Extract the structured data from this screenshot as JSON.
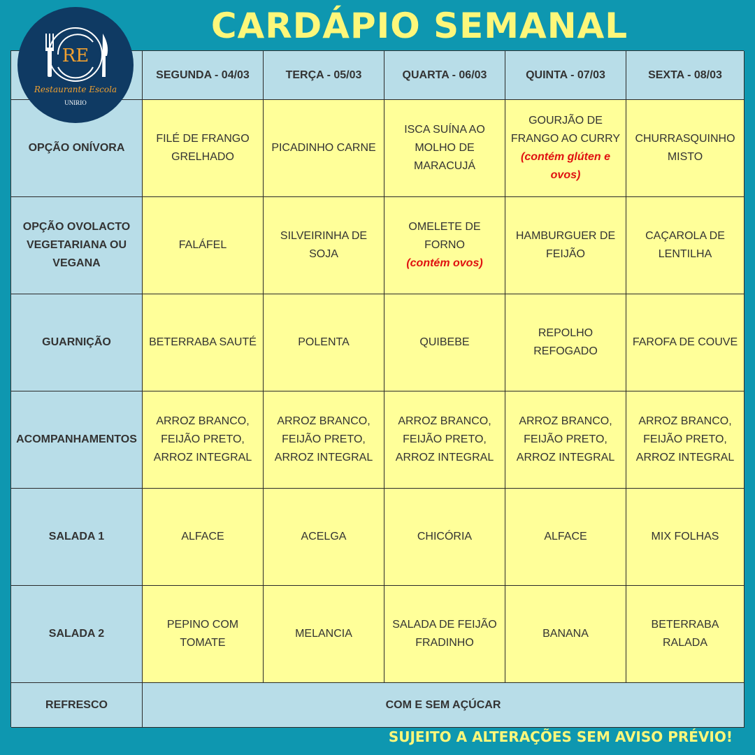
{
  "title": "CARDÁPIO SEMANAL",
  "logo": {
    "initials": "RE",
    "name": "Restaurante Escola",
    "org": "UNIRIO"
  },
  "days": [
    "SEGUNDA - 04/03",
    "TERÇA - 05/03",
    "QUARTA - 06/03",
    "QUINTA - 07/03",
    "SEXTA - 08/03"
  ],
  "rows": [
    {
      "label": "OPÇÃO ONÍVORA",
      "cells": [
        {
          "text": "FILÉ DE FRANGO GRELHADO"
        },
        {
          "text": "PICADINHO CARNE"
        },
        {
          "text": "ISCA SUÍNA AO MOLHO DE MARACUJÁ"
        },
        {
          "text": "GOURJÃO DE FRANGO AO CURRY",
          "note": "(contém glúten e ovos)"
        },
        {
          "text": "CHURRASQUINHO MISTO"
        }
      ]
    },
    {
      "label": "OPÇÃO OVOLACTO VEGETARIANA OU VEGANA",
      "cells": [
        {
          "text": "FALÁFEL"
        },
        {
          "text": "SILVEIRINHA DE SOJA"
        },
        {
          "text": "OMELETE DE FORNO",
          "note": "(contém ovos)"
        },
        {
          "text": "HAMBURGUER DE FEIJÃO"
        },
        {
          "text": "CAÇAROLA DE LENTILHA"
        }
      ]
    },
    {
      "label": "GUARNIÇÃO",
      "cells": [
        {
          "text": "BETERRABA SAUTÉ"
        },
        {
          "text": "POLENTA"
        },
        {
          "text": "QUIBEBE"
        },
        {
          "text": "REPOLHO REFOGADO"
        },
        {
          "text": "FAROFA DE COUVE"
        }
      ]
    },
    {
      "label": "ACOMPANHAMENTOS",
      "cells": [
        {
          "text": "ARROZ BRANCO, FEIJÃO PRETO, ARROZ INTEGRAL"
        },
        {
          "text": "ARROZ BRANCO, FEIJÃO PRETO, ARROZ INTEGRAL"
        },
        {
          "text": "ARROZ BRANCO, FEIJÃO PRETO, ARROZ INTEGRAL"
        },
        {
          "text": "ARROZ BRANCO, FEIJÃO PRETO, ARROZ INTEGRAL"
        },
        {
          "text": "ARROZ BRANCO, FEIJÃO PRETO, ARROZ INTEGRAL"
        }
      ]
    },
    {
      "label": "SALADA 1",
      "cells": [
        {
          "text": "ALFACE"
        },
        {
          "text": "ACELGA"
        },
        {
          "text": "CHICÓRIA"
        },
        {
          "text": "ALFACE"
        },
        {
          "text": "MIX FOLHAS"
        }
      ]
    },
    {
      "label": "SALADA 2",
      "cells": [
        {
          "text": "PEPINO COM TOMATE"
        },
        {
          "text": "MELANCIA"
        },
        {
          "text": "SALADA DE FEIJÃO FRADINHO"
        },
        {
          "text": "BANANA"
        },
        {
          "text": "BETERRABA RALADA"
        }
      ]
    }
  ],
  "refresco": {
    "label": "REFRESCO",
    "text": "COM E SEM AÇÚCAR"
  },
  "footer": "SUJEITO A ALTERAÇÕES SEM AVISO PRÉVIO!",
  "colors": {
    "background": "#0e97b0",
    "header": "#b8dde8",
    "cell": "#ffff99",
    "title": "#fdf77a",
    "note": "#e01010",
    "logo": "#0f3a63"
  }
}
